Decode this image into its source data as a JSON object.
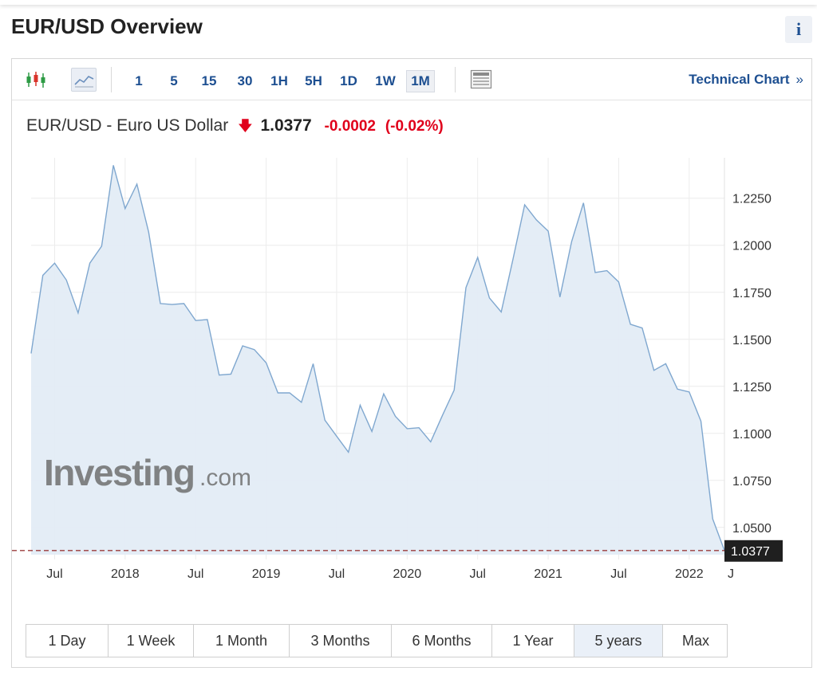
{
  "page_title": "EUR/USD Overview",
  "info_icon": "i",
  "toolbar": {
    "icons": [
      "candlestick-icon",
      "area-chart-icon",
      "table-icon"
    ],
    "intervals": [
      "1",
      "5",
      "15",
      "30",
      "1H",
      "5H",
      "1D",
      "1W",
      "1M"
    ],
    "active_interval": "1M",
    "technical_chart_label": "Technical Chart",
    "technical_chart_chevron": "»"
  },
  "quote": {
    "name": "EUR/USD - Euro US Dollar",
    "direction_icon": "down-arrow-icon",
    "price": "1.0377",
    "change": "-0.0002",
    "change_percent": "(-0.02%)"
  },
  "watermark": {
    "brand": "Investing",
    "suffix": ".com"
  },
  "colors": {
    "line": "#7fa7cf",
    "fill": "#e3ecf5",
    "negative": "#e0001b",
    "link": "#1d4f91",
    "price_line": "#9b3b3b"
  },
  "chart_data": {
    "type": "area",
    "x_ticks": [
      "Jul",
      "2018",
      "Jul",
      "2019",
      "Jul",
      "2020",
      "Jul",
      "2021",
      "Jul",
      "2022",
      "J"
    ],
    "y_ticks": [
      "1.2250",
      "1.2000",
      "1.1750",
      "1.1500",
      "1.1250",
      "1.1000",
      "1.0750",
      "1.0500"
    ],
    "ylim": [
      1.0355,
      1.2465
    ],
    "last_price_label": "1.0377",
    "last_price": 1.0377,
    "grid": true,
    "series": [
      {
        "values": [
          {
            "x": "2017-05",
            "y": 1.1425
          },
          {
            "x": "2017-06",
            "y": 1.184
          },
          {
            "x": "2017-07",
            "y": 1.1905
          },
          {
            "x": "2017-08",
            "y": 1.1815
          },
          {
            "x": "2017-09",
            "y": 1.164
          },
          {
            "x": "2017-10",
            "y": 1.1905
          },
          {
            "x": "2017-11",
            "y": 1.1995
          },
          {
            "x": "2017-12",
            "y": 1.2425
          },
          {
            "x": "2018-01",
            "y": 1.2195
          },
          {
            "x": "2018-02",
            "y": 1.2325
          },
          {
            "x": "2018-03",
            "y": 1.207
          },
          {
            "x": "2018-04",
            "y": 1.169
          },
          {
            "x": "2018-05",
            "y": 1.1685
          },
          {
            "x": "2018-06",
            "y": 1.169
          },
          {
            "x": "2018-07",
            "y": 1.16
          },
          {
            "x": "2018-08",
            "y": 1.1605
          },
          {
            "x": "2018-09",
            "y": 1.131
          },
          {
            "x": "2018-10",
            "y": 1.1315
          },
          {
            "x": "2018-11",
            "y": 1.1465
          },
          {
            "x": "2018-12",
            "y": 1.1445
          },
          {
            "x": "2019-01",
            "y": 1.1375
          },
          {
            "x": "2019-02",
            "y": 1.1215
          },
          {
            "x": "2019-03",
            "y": 1.1215
          },
          {
            "x": "2019-04",
            "y": 1.1165
          },
          {
            "x": "2019-05",
            "y": 1.137
          },
          {
            "x": "2019-06",
            "y": 1.107
          },
          {
            "x": "2019-07",
            "y": 1.0985
          },
          {
            "x": "2019-08",
            "y": 1.09
          },
          {
            "x": "2019-09",
            "y": 1.115
          },
          {
            "x": "2019-10",
            "y": 1.101
          },
          {
            "x": "2019-11",
            "y": 1.121
          },
          {
            "x": "2019-12",
            "y": 1.109
          },
          {
            "x": "2020-01",
            "y": 1.1025
          },
          {
            "x": "2020-02",
            "y": 1.103
          },
          {
            "x": "2020-03",
            "y": 1.0955
          },
          {
            "x": "2020-04",
            "y": 1.1095
          },
          {
            "x": "2020-05",
            "y": 1.123
          },
          {
            "x": "2020-06",
            "y": 1.1775
          },
          {
            "x": "2020-07",
            "y": 1.1935
          },
          {
            "x": "2020-08",
            "y": 1.172
          },
          {
            "x": "2020-09",
            "y": 1.1645
          },
          {
            "x": "2020-10",
            "y": 1.1925
          },
          {
            "x": "2020-11",
            "y": 1.2215
          },
          {
            "x": "2020-12",
            "y": 1.2135
          },
          {
            "x": "2021-01",
            "y": 1.2075
          },
          {
            "x": "2021-02",
            "y": 1.1725
          },
          {
            "x": "2021-03",
            "y": 1.202
          },
          {
            "x": "2021-04",
            "y": 1.2225
          },
          {
            "x": "2021-05",
            "y": 1.1855
          },
          {
            "x": "2021-06",
            "y": 1.1865
          },
          {
            "x": "2021-07",
            "y": 1.1805
          },
          {
            "x": "2021-08",
            "y": 1.158
          },
          {
            "x": "2021-09",
            "y": 1.156
          },
          {
            "x": "2021-10",
            "y": 1.1335
          },
          {
            "x": "2021-11",
            "y": 1.137
          },
          {
            "x": "2021-12",
            "y": 1.1235
          },
          {
            "x": "2022-01",
            "y": 1.122
          },
          {
            "x": "2022-02",
            "y": 1.1065
          },
          {
            "x": "2022-03",
            "y": 1.0545
          },
          {
            "x": "2022-04",
            "y": 1.0377
          }
        ]
      }
    ]
  },
  "ranges": {
    "items": [
      "1 Day",
      "1 Week",
      "1 Month",
      "3 Months",
      "6 Months",
      "1 Year",
      "5 years",
      "Max"
    ],
    "active": "5 years"
  }
}
